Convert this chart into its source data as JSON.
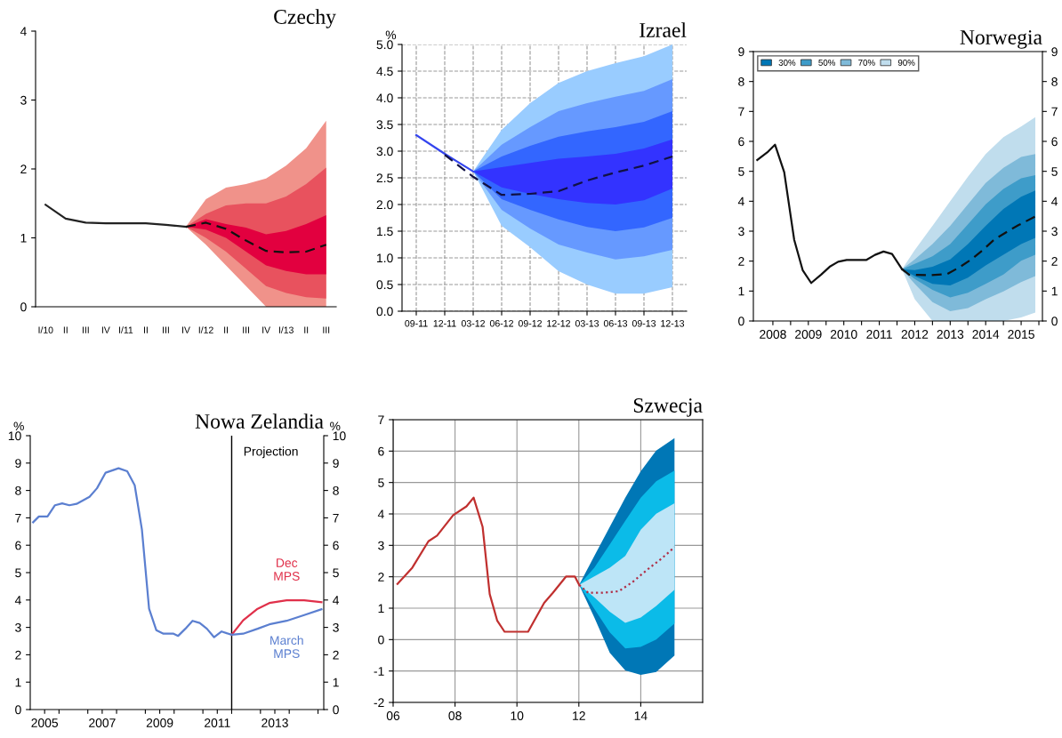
{
  "chart_data": [
    {
      "type": "line",
      "title": "Czechy",
      "categories": [
        "I/10",
        "II",
        "III",
        "IV",
        "I/11",
        "II",
        "III",
        "IV",
        "I/12",
        "II",
        "III",
        "IV",
        "I/13",
        "II",
        "III"
      ],
      "ylim": [
        0,
        4
      ],
      "yticks": [
        0,
        1,
        2,
        3,
        4
      ],
      "grid": false,
      "series": [
        {
          "color": "#f0928a",
          "values": [
            null,
            null,
            null,
            null,
            null,
            null,
            null,
            null,
            null,
            null,
            null,
            null,
            null,
            null,
            null
          ],
          "lower": [
            null,
            null,
            null,
            null,
            null,
            null,
            null,
            1.16,
            0.9,
            0.6,
            0.3,
            0.0,
            0.0,
            0.0,
            0.0
          ],
          "upper": [
            null,
            null,
            null,
            null,
            null,
            null,
            null,
            1.16,
            1.56,
            1.73,
            1.78,
            1.86,
            2.05,
            2.3,
            2.7
          ]
        },
        {
          "color": "#e8525e",
          "values": [
            null,
            null,
            null,
            null,
            null,
            null,
            null,
            null,
            null,
            null,
            null,
            null,
            null,
            null,
            null
          ],
          "lower": [
            null,
            null,
            null,
            null,
            null,
            null,
            null,
            1.16,
            1.0,
            0.8,
            0.55,
            0.3,
            0.2,
            0.14,
            0.12
          ],
          "upper": [
            null,
            null,
            null,
            null,
            null,
            null,
            null,
            1.16,
            1.35,
            1.47,
            1.5,
            1.5,
            1.6,
            1.78,
            2.02
          ]
        },
        {
          "color": "#e2003f",
          "values": [
            null,
            null,
            null,
            null,
            null,
            null,
            null,
            null,
            null,
            null,
            null,
            null,
            null,
            null,
            null
          ],
          "lower": [
            null,
            null,
            null,
            null,
            null,
            null,
            null,
            1.16,
            1.12,
            1.0,
            0.8,
            0.6,
            0.52,
            0.47,
            0.47
          ],
          "upper": [
            null,
            null,
            null,
            null,
            null,
            null,
            null,
            1.16,
            1.27,
            1.2,
            1.15,
            1.05,
            1.1,
            1.2,
            1.33
          ]
        },
        {
          "color": "#222222",
          "line_style": "solid",
          "values": [
            1.48,
            1.28,
            1.22,
            1.21,
            1.21,
            1.21,
            1.19,
            1.16,
            null,
            null,
            null,
            null,
            null,
            null,
            null
          ]
        },
        {
          "color": "#111111",
          "line_style": "dashed",
          "values": [
            null,
            null,
            null,
            null,
            null,
            null,
            null,
            1.16,
            1.22,
            1.13,
            0.96,
            0.81,
            0.79,
            0.8,
            0.9
          ]
        }
      ]
    },
    {
      "type": "line",
      "title": "Izrael",
      "ylabel": "%",
      "categories": [
        "09-11",
        "12-11",
        "03-12",
        "06-12",
        "09-12",
        "12-12",
        "03-13",
        "06-13",
        "09-13",
        "12-13"
      ],
      "ylim": [
        0,
        5
      ],
      "yticks": [
        {
          "value": 0,
          "label": "0.0"
        },
        {
          "value": 0.5,
          "label": "0.5"
        },
        {
          "value": 1,
          "label": "1.0"
        },
        {
          "value": 1.5,
          "label": "1.5"
        },
        {
          "value": 2,
          "label": "2.0"
        },
        {
          "value": 2.5,
          "label": "2.5"
        },
        {
          "value": 3,
          "label": "3.0"
        },
        {
          "value": 3.5,
          "label": "3.5"
        },
        {
          "value": 4,
          "label": "4.0"
        },
        {
          "value": 4.5,
          "label": "4.5"
        },
        {
          "value": 5,
          "label": "5.0"
        }
      ],
      "grid": true,
      "series": [
        {
          "color": "#99ccff",
          "values": [
            null,
            null,
            null,
            null,
            null,
            null,
            null,
            null,
            null,
            null
          ],
          "lower": [
            null,
            null,
            2.62,
            1.6,
            1.2,
            0.75,
            0.5,
            0.33,
            0.33,
            0.45
          ],
          "upper": [
            null,
            null,
            2.62,
            3.4,
            3.9,
            4.28,
            4.5,
            4.65,
            4.78,
            5.0
          ]
        },
        {
          "color": "#6699ff",
          "values": [
            null,
            null,
            null,
            null,
            null,
            null,
            null,
            null,
            null,
            null
          ],
          "lower": [
            null,
            null,
            2.62,
            1.9,
            1.55,
            1.25,
            1.1,
            0.97,
            1.03,
            1.15
          ],
          "upper": [
            null,
            null,
            2.62,
            3.12,
            3.45,
            3.75,
            3.9,
            4.02,
            4.13,
            4.35
          ]
        },
        {
          "color": "#3366ff",
          "values": [
            null,
            null,
            null,
            null,
            null,
            null,
            null,
            null,
            null,
            null
          ],
          "lower": [
            null,
            null,
            2.62,
            2.1,
            1.9,
            1.72,
            1.58,
            1.5,
            1.57,
            1.75
          ],
          "upper": [
            null,
            null,
            2.62,
            2.9,
            3.1,
            3.27,
            3.37,
            3.45,
            3.55,
            3.75
          ]
        },
        {
          "color": "#3333ff",
          "values": [
            null,
            null,
            null,
            null,
            null,
            null,
            null,
            null,
            null,
            null
          ],
          "lower": [
            null,
            null,
            2.62,
            2.32,
            2.2,
            2.1,
            2.03,
            2.0,
            2.08,
            2.3
          ],
          "upper": [
            null,
            null,
            2.62,
            2.7,
            2.78,
            2.86,
            2.9,
            2.95,
            3.05,
            3.22
          ]
        },
        {
          "color": "#3344ee",
          "line_style": "solid",
          "values": [
            3.3,
            2.95,
            2.62,
            null,
            null,
            null,
            null,
            null,
            null,
            null
          ]
        },
        {
          "color": "#111144",
          "line_style": "dashed",
          "values": [
            null,
            2.93,
            2.52,
            2.18,
            2.2,
            2.25,
            2.45,
            2.6,
            2.73,
            2.9
          ]
        }
      ]
    },
    {
      "type": "line",
      "title": "Norwegia",
      "legend": "top left",
      "xlim": [
        2007.95,
        2016.1
      ],
      "xticks": [
        {
          "value": 2008.5,
          "label": "2008"
        },
        {
          "value": 2009.5,
          "label": "2009"
        },
        {
          "value": 2010.5,
          "label": "2010"
        },
        {
          "value": 2011.5,
          "label": "2011"
        },
        {
          "value": 2012.5,
          "label": "2012"
        },
        {
          "value": 2013.5,
          "label": "2013"
        },
        {
          "value": 2014.5,
          "label": "2014"
        },
        {
          "value": 2015.5,
          "label": "2015"
        },
        {
          "value": 2009,
          "label": null
        },
        {
          "value": 2010,
          "label": null
        },
        {
          "value": 2011,
          "label": null
        },
        {
          "value": 2012,
          "label": null
        },
        {
          "value": 2013,
          "label": null
        },
        {
          "value": 2014,
          "label": null
        },
        {
          "value": 2015,
          "label": null
        },
        {
          "value": 2016,
          "label": null
        }
      ],
      "ylim": [
        0,
        9
      ],
      "yticks": [
        0,
        1,
        2,
        3,
        4,
        5,
        6,
        7,
        8,
        9
      ],
      "y2lim": [
        0,
        9
      ],
      "y2ticks": [
        0,
        1,
        2,
        3,
        4,
        5,
        6,
        7,
        8,
        9
      ],
      "grid": false,
      "series": [
        {
          "name": "90%",
          "color": "#c0dded",
          "x": [
            2012.14,
            2012.5,
            2013.0,
            2013.5,
            2014.0,
            2014.5,
            2015.0,
            2015.5,
            2015.9
          ],
          "values": [
            null,
            null,
            null,
            null,
            null,
            null,
            null,
            null,
            null
          ],
          "lower": [
            1.73,
            0.73,
            0.0,
            0.0,
            0.0,
            0.0,
            0.0,
            0.12,
            0.28
          ],
          "upper": [
            1.73,
            2.37,
            3.18,
            4.0,
            4.82,
            5.58,
            6.14,
            6.5,
            6.81
          ]
        },
        {
          "name": "70%",
          "color": "#7fbad9",
          "x": [
            2012.14,
            2012.5,
            2013.0,
            2013.5,
            2014.0,
            2014.5,
            2015.0,
            2015.5,
            2015.9
          ],
          "values": [
            null,
            null,
            null,
            null,
            null,
            null,
            null,
            null,
            null
          ],
          "lower": [
            1.73,
            1.24,
            0.63,
            0.33,
            0.43,
            0.73,
            0.99,
            1.3,
            1.5
          ],
          "upper": [
            1.73,
            2.06,
            2.57,
            3.18,
            3.9,
            4.61,
            5.12,
            5.48,
            5.58
          ]
        },
        {
          "name": "50%",
          "color": "#3e9cc9",
          "x": [
            2012.14,
            2012.5,
            2013.0,
            2013.5,
            2014.0,
            2014.5,
            2015.0,
            2015.5,
            2015.9
          ],
          "values": [
            null,
            null,
            null,
            null,
            null,
            null,
            null,
            null,
            null
          ],
          "lower": [
            1.73,
            1.4,
            1.04,
            0.79,
            0.94,
            1.24,
            1.55,
            2.01,
            2.21
          ],
          "upper": [
            1.73,
            1.91,
            2.16,
            2.57,
            3.23,
            3.9,
            4.41,
            4.77,
            4.87
          ]
        },
        {
          "name": "30%",
          "color": "#0077b6",
          "x": [
            2012.14,
            2012.5,
            2013.0,
            2013.5,
            2014.0,
            2014.5,
            2015.0,
            2015.5,
            2015.9
          ],
          "values": [
            null,
            null,
            null,
            null,
            null,
            null,
            null,
            null,
            null
          ],
          "lower": [
            1.73,
            1.5,
            1.24,
            1.19,
            1.45,
            1.86,
            2.21,
            2.57,
            2.78
          ],
          "upper": [
            1.73,
            1.7,
            1.81,
            2.06,
            2.57,
            3.18,
            3.74,
            4.15,
            4.36
          ]
        },
        {
          "color": "#111111",
          "line_style": "solid",
          "x": [
            2008.06,
            2008.34,
            2008.56,
            2008.82,
            2009.1,
            2009.34,
            2009.58,
            2009.86,
            2010.1,
            2010.34,
            2010.58,
            2011.14,
            2011.38,
            2011.62,
            2011.86,
            2012.14
          ],
          "values": [
            5.38,
            5.63,
            5.89,
            4.97,
            2.72,
            1.7,
            1.27,
            1.55,
            1.81,
            1.98,
            2.04,
            2.04,
            2.21,
            2.32,
            2.24,
            1.73
          ]
        },
        {
          "color": "#111111",
          "line_style": "dashed",
          "x": [
            2012.14,
            2012.34,
            2012.9,
            2013.42,
            2013.78,
            2014.1,
            2014.42,
            2014.74,
            2015.1,
            2015.42,
            2015.9
          ],
          "values": [
            1.73,
            1.55,
            1.53,
            1.57,
            1.81,
            2.06,
            2.37,
            2.72,
            2.98,
            3.2,
            3.49
          ]
        }
      ]
    },
    {
      "type": "line",
      "title": "Nowa Zelandia",
      "ylabel": "%",
      "y2label": "%",
      "xlim": [
        2005,
        2015.2
      ],
      "xticks": [
        {
          "value": 2005.5,
          "label": "2005"
        },
        {
          "value": 2007.5,
          "label": "2007"
        },
        {
          "value": 2009.5,
          "label": "2009"
        },
        {
          "value": 2011.5,
          "label": "2011"
        },
        {
          "value": 2013.5,
          "label": "2013"
        },
        {
          "value": 2006,
          "label": null
        },
        {
          "value": 2007,
          "label": null
        },
        {
          "value": 2008,
          "label": null
        },
        {
          "value": 2009,
          "label": null
        },
        {
          "value": 2010,
          "label": null
        },
        {
          "value": 2011,
          "label": null
        },
        {
          "value": 2012,
          "label": null
        },
        {
          "value": 2013,
          "label": null
        },
        {
          "value": 2014,
          "label": null
        },
        {
          "value": 2015,
          "label": null
        }
      ],
      "ylim": [
        0,
        10
      ],
      "yticks": [
        0,
        1,
        2,
        3,
        4,
        5,
        6,
        7,
        8,
        9,
        10
      ],
      "y2lim": [
        0,
        10
      ],
      "y2ticks": [
        0,
        1,
        2,
        3,
        4,
        5,
        6,
        7,
        8,
        9,
        10
      ],
      "grid": false,
      "ref_lines": [
        {
          "axis": "x",
          "value": 2012.0,
          "label": null,
          "color": "#000000"
        }
      ],
      "annotations": [
        "Projection"
      ],
      "series": [
        {
          "name": "Dec MPS",
          "color": "#e0304a",
          "line_style": "solid",
          "x": [
            2012.0,
            2012.4,
            2012.9,
            2013.31,
            2013.91,
            2014.52,
            2015.12
          ],
          "values": [
            2.73,
            3.26,
            3.68,
            3.89,
            3.99,
            3.99,
            3.92
          ]
        },
        {
          "name": "March MPS",
          "color": "#5b7fd0",
          "line_style": "solid",
          "x": [
            2005.1,
            2005.3,
            2005.6,
            2005.86,
            2006.11,
            2006.36,
            2006.61,
            2007.06,
            2007.32,
            2007.62,
            2008.07,
            2008.37,
            2008.63,
            2008.88,
            2009.13,
            2009.38,
            2009.63,
            2009.98,
            2010.14,
            2010.39,
            2010.64,
            2010.89,
            2011.14,
            2011.39,
            2011.65,
            2012.0,
            2012.4,
            2012.9,
            2013.31,
            2013.91,
            2014.52,
            2015.12
          ],
          "values": [
            6.84,
            7.05,
            7.05,
            7.46,
            7.53,
            7.46,
            7.51,
            7.77,
            8.08,
            8.65,
            8.81,
            8.7,
            8.19,
            6.58,
            3.68,
            2.9,
            2.77,
            2.77,
            2.69,
            2.95,
            3.24,
            3.16,
            2.95,
            2.64,
            2.85,
            2.73,
            2.77,
            2.95,
            3.11,
            3.24,
            3.45,
            3.66
          ]
        }
      ]
    },
    {
      "type": "line",
      "title": "Szwecja",
      "xlim": [
        2006,
        2016
      ],
      "xticks": [
        {
          "value": 2006,
          "label": "06"
        },
        {
          "value": 2008,
          "label": "08"
        },
        {
          "value": 2010,
          "label": "10"
        },
        {
          "value": 2012,
          "label": "12"
        },
        {
          "value": 2014,
          "label": "14"
        }
      ],
      "ylim": [
        -2,
        7
      ],
      "yticks": [
        {
          "value": -2,
          "label": "-2"
        },
        {
          "value": -1,
          "label": "-1"
        },
        0,
        1,
        2,
        3,
        4,
        5,
        6,
        7
      ],
      "grid": true,
      "series": [
        {
          "color": "#0077b6",
          "x": [
            2012.01,
            2012.5,
            2013.0,
            2013.5,
            2014.0,
            2014.5,
            2015.09
          ],
          "values": [
            null,
            null,
            null,
            null,
            null,
            null,
            null
          ],
          "lower": [
            1.74,
            0.7,
            -0.42,
            -0.98,
            -1.12,
            -1.03,
            -0.51
          ],
          "upper": [
            1.74,
            2.66,
            3.59,
            4.52,
            5.36,
            6.02,
            6.41
          ]
        },
        {
          "color": "#0bbbe8",
          "x": [
            2012.01,
            2012.5,
            2013.0,
            2013.5,
            2014.0,
            2014.5,
            2015.09
          ],
          "values": [
            null,
            null,
            null,
            null,
            null,
            null,
            null
          ],
          "lower": [
            1.74,
            0.98,
            0.23,
            -0.28,
            -0.23,
            0.0,
            0.51
          ],
          "upper": [
            1.74,
            2.29,
            3.03,
            3.78,
            4.52,
            5.04,
            5.38
          ]
        },
        {
          "color": "#bde5f7",
          "x": [
            2012.01,
            2012.5,
            2013.0,
            2013.5,
            2014.0,
            2014.5,
            2015.09
          ],
          "values": [
            null,
            null,
            null,
            null,
            null,
            null,
            null
          ],
          "lower": [
            1.74,
            1.35,
            0.89,
            0.53,
            0.7,
            1.07,
            1.59
          ],
          "upper": [
            1.74,
            2.01,
            2.29,
            2.66,
            3.5,
            4.01,
            4.34
          ]
        },
        {
          "color": "#c0302f",
          "line_style": "solid",
          "x": [
            2006.14,
            2006.62,
            2007.14,
            2007.42,
            2007.94,
            2008.37,
            2008.6,
            2008.89,
            2009.12,
            2009.36,
            2009.6,
            2010.36,
            2010.88,
            2011.16,
            2011.59,
            2011.87,
            2012.01
          ],
          "values": [
            1.77,
            2.29,
            3.13,
            3.31,
            3.96,
            4.24,
            4.52,
            3.59,
            1.45,
            0.61,
            0.25,
            0.25,
            1.17,
            1.49,
            2.01,
            2.01,
            1.74
          ]
        },
        {
          "color": "#b03048",
          "line_style": "dotted",
          "x": [
            2012.01,
            2012.3,
            2012.77,
            2013.29,
            2013.72,
            2014.29,
            2014.66,
            2015.09
          ],
          "values": [
            1.74,
            1.49,
            1.49,
            1.54,
            1.82,
            2.29,
            2.57,
            2.94
          ]
        }
      ]
    }
  ]
}
